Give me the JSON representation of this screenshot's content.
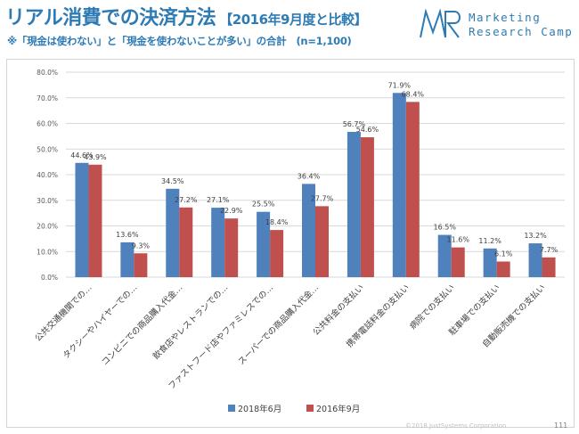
{
  "header": {
    "title": "リアル消費での決済方法",
    "title_suffix": "【2016年9月度と比較】",
    "note": "※「現金は使わない」と「現金を使わないことが多い」の合計　(n=1,100)"
  },
  "logo": {
    "line1": "Marketing",
    "line2": "Research Camp"
  },
  "footer": {
    "copyright": "©2018 JustSystems Corporation",
    "page_number": "111"
  },
  "colors": {
    "series_2018": "#4f81bd",
    "series_2016": "#c0504d",
    "title": "#2e7bb4"
  },
  "chart_data": {
    "type": "bar",
    "ylim": [
      0,
      80
    ],
    "y_step": 10,
    "y_ticks": [
      "0.0%",
      "10.0%",
      "20.0%",
      "30.0%",
      "40.0%",
      "50.0%",
      "60.0%",
      "70.0%",
      "80.0%"
    ],
    "grid": true,
    "legend_position": "bottom",
    "categories": [
      "公共交通機関での…",
      "タクシーやハイヤーでの…",
      "コンビニでの商品購入代金…",
      "飲食店やレストランでの…",
      "ファストフード店やファミレスでの…",
      "スーパーでの商品購入代金…",
      "公共料金の支払い",
      "携帯電話料金の支払い",
      "病院での支払い",
      "駐車場での支払い",
      "自動販売機での支払い"
    ],
    "series": [
      {
        "name": "2018年6月",
        "color": "#4f81bd",
        "values": [
          44.6,
          13.6,
          34.5,
          27.1,
          25.5,
          36.4,
          56.7,
          71.9,
          16.5,
          11.2,
          13.2
        ],
        "labels": [
          "44.6%",
          "13.6%",
          "34.5%",
          "27.1%",
          "25.5%",
          "36.4%",
          "56.7%",
          "71.9%",
          "16.5%",
          "11.2%",
          "13.2%"
        ]
      },
      {
        "name": "2016年9月",
        "color": "#c0504d",
        "values": [
          43.9,
          9.3,
          27.2,
          22.9,
          18.4,
          27.7,
          54.6,
          68.4,
          11.6,
          6.1,
          7.7
        ],
        "labels": [
          "43.9%",
          "9.3%",
          "27.2%",
          "22.9%",
          "18.4%",
          "27.7%",
          "54.6%",
          "68.4%",
          "11.6%",
          "6.1%",
          "7.7%"
        ]
      }
    ]
  }
}
